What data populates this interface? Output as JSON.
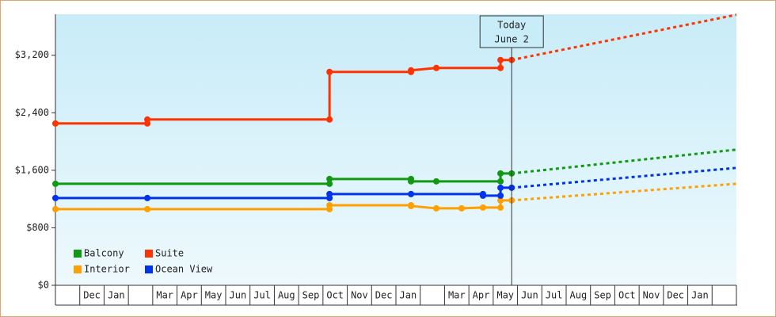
{
  "chart_data": {
    "type": "line",
    "categories": [
      null,
      "Dec",
      "Jan",
      null,
      "Mar",
      "Apr",
      "May",
      "Jun",
      "Jul",
      "Aug",
      "Sep",
      "Oct",
      "Nov",
      "Dec",
      "Jan",
      null,
      "Mar",
      "Apr",
      "May",
      "Jun",
      "Jul",
      "Aug",
      "Sep",
      "Oct",
      "Nov",
      "Dec",
      "Jan",
      null
    ],
    "xlim": [
      0,
      28
    ],
    "ylim": [
      0,
      3770
    ],
    "yticks": [
      {
        "value": 0,
        "label": "$0"
      },
      {
        "value": 800,
        "label": "$800"
      },
      {
        "value": 1600,
        "label": "$1,600"
      },
      {
        "value": 2400,
        "label": "$2,400"
      },
      {
        "value": 3200,
        "label": "$3,200"
      }
    ],
    "today": {
      "x": 18.76,
      "label": [
        "Today",
        "June 2"
      ]
    },
    "legend": "lower left",
    "series": [
      {
        "name": "Balcony",
        "color": "#119911",
        "x": [
          0,
          11.27,
          11.27,
          14.62,
          14.62,
          15.66,
          18.3,
          18.3,
          18.76
        ],
        "values": [
          1412,
          1412,
          1479,
          1479,
          1446,
          1446,
          1446,
          1556,
          1556
        ],
        "forecast": {
          "x": [
            18.76,
            28
          ],
          "values": [
            1556,
            1887
          ]
        }
      },
      {
        "name": "Suite",
        "color": "#ff3300",
        "x": [
          0,
          3.78,
          3.78,
          11.27,
          11.27,
          14.62,
          14.62,
          15.66,
          18.3,
          18.3,
          18.76
        ],
        "values": [
          2251,
          2251,
          2306,
          2306,
          2968,
          2968,
          2990,
          3023,
          3023,
          3134,
          3134
        ],
        "forecast": {
          "x": [
            18.76,
            28
          ],
          "values": [
            3134,
            3763
          ]
        }
      },
      {
        "name": "Interior",
        "color": "#ffa000",
        "x": [
          0,
          3.78,
          11.27,
          11.27,
          14.62,
          14.62,
          15.66,
          16.7,
          17.58,
          18.3,
          18.3,
          18.76
        ],
        "values": [
          1059,
          1059,
          1059,
          1114,
          1114,
          1103,
          1070,
          1070,
          1081,
          1081,
          1181,
          1181
        ],
        "forecast": {
          "x": [
            18.76,
            28
          ],
          "values": [
            1181,
            1412
          ]
        }
      },
      {
        "name": "Ocean View",
        "color": "#0033ee",
        "x": [
          0,
          3.78,
          11.27,
          11.27,
          14.62,
          17.58,
          17.58,
          18.3,
          18.3,
          18.76
        ],
        "values": [
          1214,
          1214,
          1214,
          1269,
          1269,
          1269,
          1247,
          1247,
          1357,
          1357
        ],
        "forecast": {
          "x": [
            18.76,
            28
          ],
          "values": [
            1357,
            1633
          ]
        }
      }
    ]
  }
}
